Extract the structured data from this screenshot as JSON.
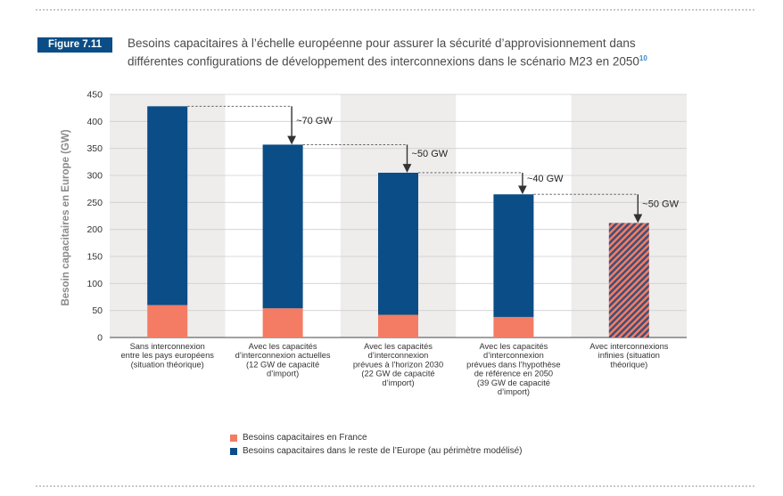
{
  "figure": {
    "label": "Figure 7.11",
    "title_line1": "Besoins capacitaires à l’échelle européenne pour assurer la sécurité d’approvisionnement dans",
    "title_line2": "différentes configurations de développement des interconnexions dans le scénario M23 en 2050",
    "footnote": "10"
  },
  "colors": {
    "france": "#f47c64",
    "europe": "#0b4d86",
    "hatch_a": "#f47c64",
    "hatch_b": "#3f4f76",
    "band": "#efecec",
    "grid": "#cfcfcf",
    "arrow": "#333333"
  },
  "chart_data": {
    "type": "bar",
    "stacked": true,
    "ylabel": "Besoin capacitaires en Europe (GW)",
    "ylim": [
      0,
      450
    ],
    "yticks": [
      0,
      50,
      100,
      150,
      200,
      250,
      300,
      350,
      400,
      450
    ],
    "categories": [
      [
        "Sans interconnexion",
        "entre les pays européens",
        "(situation théorique)"
      ],
      [
        "Avec les capacités",
        "d’interconnexion actuelles",
        "(12 GW de capacité",
        "d’import)"
      ],
      [
        "Avec les capacités",
        "d’interconnexion",
        "prévues à l’horizon 2030",
        "(22 GW de capacité",
        "d’import)"
      ],
      [
        "Avec les capacités",
        "d’interconnexion",
        "prévues dans l’hypothèse",
        "de référence en 2050",
        "(39 GW de capacité",
        "d’import)"
      ],
      [
        "Avec interconnexions",
        "infinies (situation",
        "théorique)"
      ]
    ],
    "series": [
      {
        "name": "Besoins capacitaires en France",
        "values": [
          60,
          54,
          42,
          38,
          null
        ]
      },
      {
        "name": "Besoins capacitaires dans le reste de l’Europe (au périmètre modélisé)",
        "values": [
          368,
          303,
          263,
          227,
          null
        ]
      }
    ],
    "combined_infinite": {
      "index": 4,
      "value": 212
    },
    "step_annotations": [
      "~70 GW",
      "~50 GW",
      "~40 GW",
      "~50 GW"
    ],
    "legend_position": "bottom"
  }
}
